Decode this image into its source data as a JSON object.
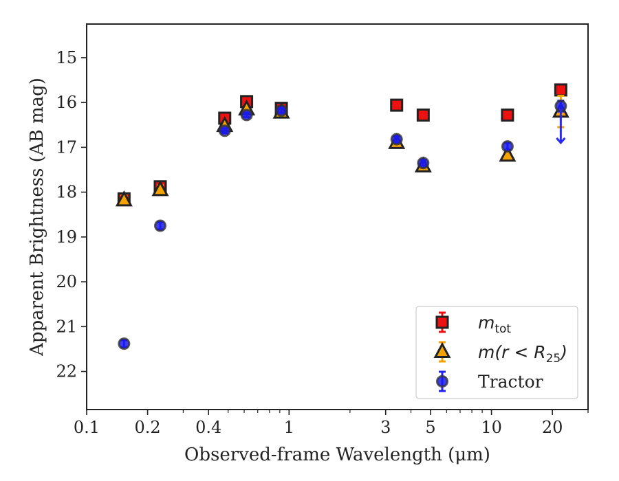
{
  "chart_data": {
    "type": "scatter",
    "title": "",
    "xlabel": "Observed-frame Wavelength (μm)",
    "ylabel": "Apparent Brightness (AB mag)",
    "x_scale": "log",
    "xlim": [
      0.1,
      30
    ],
    "ylim": [
      22.85,
      14.25
    ],
    "y_inverted": true,
    "xticks": [
      {
        "value": 0.1,
        "label": "0.1"
      },
      {
        "value": 0.2,
        "label": "0.2"
      },
      {
        "value": 0.4,
        "label": "0.4"
      },
      {
        "value": 1,
        "label": "1"
      },
      {
        "value": 3,
        "label": "3"
      },
      {
        "value": 5,
        "label": "5"
      },
      {
        "value": 10,
        "label": "10"
      },
      {
        "value": 20,
        "label": "20"
      }
    ],
    "yticks": [
      15,
      16,
      17,
      18,
      19,
      20,
      21,
      22
    ],
    "grid": false,
    "legend_position": "lower-right",
    "series": [
      {
        "name": "m_tot",
        "legend_main": "m",
        "legend_sub": "tot",
        "marker": "square",
        "face_color": "#ee1111",
        "edge_color": "#222222",
        "error_color": "#ee1111",
        "points": [
          {
            "x": 0.153,
            "y": 18.15,
            "err": 0.12
          },
          {
            "x": 0.231,
            "y": 17.88,
            "err": 0.1
          },
          {
            "x": 0.481,
            "y": 16.35,
            "err": 0.05
          },
          {
            "x": 0.617,
            "y": 15.98,
            "err": 0.05
          },
          {
            "x": 0.916,
            "y": 16.13,
            "err": 0.05
          },
          {
            "x": 3.4,
            "y": 16.06,
            "err": 0.05
          },
          {
            "x": 4.6,
            "y": 16.28,
            "err": 0.05
          },
          {
            "x": 12.0,
            "y": 16.28,
            "err": 0.05
          },
          {
            "x": 22.0,
            "y": 15.72,
            "err": 0.05
          }
        ]
      },
      {
        "name": "m(r<R25)",
        "legend_main": "m(r < R",
        "legend_sub": "25",
        "legend_end": ")",
        "marker": "triangle",
        "face_color": "#f5a300",
        "edge_color": "#222222",
        "error_color": "#f5a300",
        "points": [
          {
            "x": 0.153,
            "y": 18.18,
            "err": 0.1
          },
          {
            "x": 0.231,
            "y": 17.95,
            "err": 0.1
          },
          {
            "x": 0.481,
            "y": 16.52,
            "err": 0.05
          },
          {
            "x": 0.617,
            "y": 16.15,
            "err": 0.05
          },
          {
            "x": 0.916,
            "y": 16.22,
            "err": 0.05
          },
          {
            "x": 3.4,
            "y": 16.9,
            "err": 0.06
          },
          {
            "x": 4.6,
            "y": 17.42,
            "err": 0.06
          },
          {
            "x": 12.0,
            "y": 17.18,
            "err": 0.08
          },
          {
            "x": 22.0,
            "y": 16.2,
            "err": 0.35
          }
        ]
      },
      {
        "name": "Tractor",
        "legend_main": "Tractor",
        "marker": "circle",
        "face_color": "#1a1aee",
        "edge_color": "#333333",
        "error_color": "#2222ee",
        "points": [
          {
            "x": 0.153,
            "y": 21.38,
            "err": 0.08
          },
          {
            "x": 0.231,
            "y": 18.75,
            "err": 0.08
          },
          {
            "x": 0.481,
            "y": 16.63,
            "err": 0.05
          },
          {
            "x": 0.617,
            "y": 16.28,
            "err": 0.05
          },
          {
            "x": 0.916,
            "y": 16.18,
            "err": 0.05
          },
          {
            "x": 3.4,
            "y": 16.82,
            "err": 0.07
          },
          {
            "x": 4.6,
            "y": 17.35,
            "err": 0.07
          },
          {
            "x": 12.0,
            "y": 16.98,
            "err": 0.08
          },
          {
            "x": 22.0,
            "y": 16.08,
            "err": 0.12
          }
        ],
        "upper_limit": {
          "x": 22.0,
          "y_from": 16.15,
          "y_to": 16.9
        }
      }
    ]
  }
}
